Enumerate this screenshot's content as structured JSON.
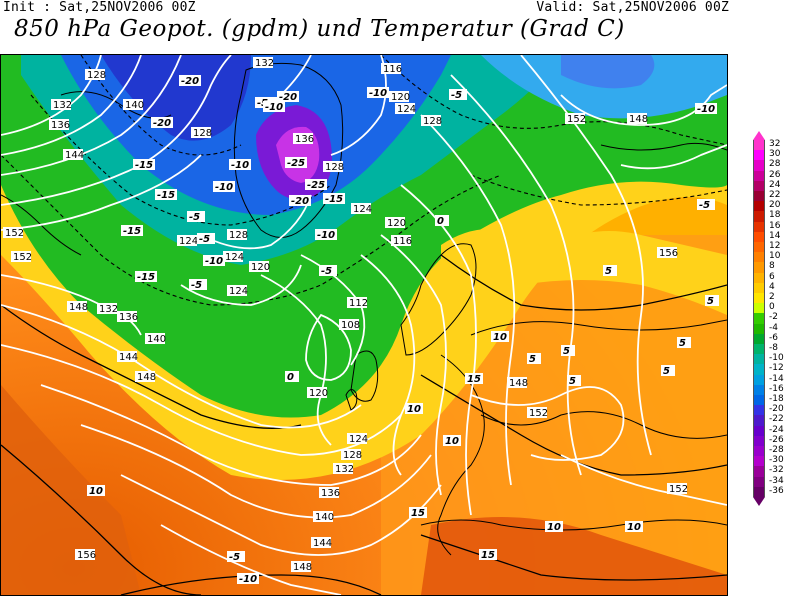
{
  "header": {
    "init": "Init : Sat,25NOV2006 00Z",
    "valid": "Valid: Sat,25NOV2006 00Z",
    "title": "850 hPa Geopot. (gpdm) und Temperatur (Grad C)"
  },
  "colors": {
    "temp_scale": {
      "32": "#ff33cc",
      "30": "#ff00ff",
      "28": "#e600c8",
      "26": "#cc0099",
      "24": "#b30066",
      "22": "#990033",
      "20": "#b30000",
      "18": "#cc1a00",
      "16": "#e63300",
      "14": "#ff4d00",
      "12": "#ff6600",
      "10": "#ff8000",
      "8": "#ff9900",
      "6": "#ffb300",
      "4": "#ffcc00",
      "2": "#ffe600",
      "0": "#ccff00",
      "-2": "#33cc00",
      "-4": "#1fb800",
      "-6": "#00a82e",
      "-8": "#00b36b",
      "-10": "#00b3a0",
      "-12": "#00b3c8",
      "-14": "#00a0e0",
      "-16": "#0080e6",
      "-18": "#0066e6",
      "-20": "#3333e6",
      "-22": "#4d1acc",
      "-24": "#6600cc",
      "-26": "#8000cc",
      "-28": "#9900cc",
      "-30": "#b300cc",
      "-32": "#990099",
      "-34": "#800080",
      "-36": "#660066"
    }
  },
  "colorbar": {
    "labels": [
      "32",
      "30",
      "28",
      "26",
      "24",
      "22",
      "20",
      "18",
      "16",
      "14",
      "12",
      "10",
      "8",
      "6",
      "4",
      "2",
      "0",
      "-2",
      "-4",
      "-6",
      "-8",
      "-10",
      "-12",
      "-14",
      "-16",
      "-18",
      "-20",
      "-22",
      "-24",
      "-26",
      "-28",
      "-30",
      "-32",
      "-34",
      "-36"
    ]
  },
  "map": {
    "geopotential_labels": [
      "128",
      "132",
      "140",
      "136",
      "144",
      "128",
      "132",
      "136",
      "128",
      "116",
      "120",
      "124",
      "128",
      "152",
      "148",
      "124",
      "120",
      "124",
      "128",
      "120",
      "116",
      "112",
      "108",
      "120",
      "124",
      "128",
      "132",
      "136",
      "140",
      "144",
      "148",
      "156",
      "152",
      "156",
      "148",
      "152",
      "152",
      "152",
      "148",
      "132",
      "136",
      "140",
      "144",
      "148",
      "124",
      "120",
      "124"
    ],
    "temperature_labels": [
      "-20",
      "-20",
      "-15",
      "-15",
      "-10",
      "-10",
      "-5",
      "-5",
      "-15",
      "-10",
      "-5",
      "-5",
      "-10",
      "-15",
      "-20",
      "-25",
      "-25",
      "-20",
      "-15",
      "-10",
      "-10",
      "-5",
      "0",
      "-5",
      "0",
      "5",
      "5",
      "5",
      "10",
      "15",
      "10",
      "10",
      "10",
      "15",
      "15",
      "10",
      "5",
      "5",
      "5",
      "-10",
      "-5",
      "10",
      "-10",
      "-5",
      "5"
    ]
  }
}
